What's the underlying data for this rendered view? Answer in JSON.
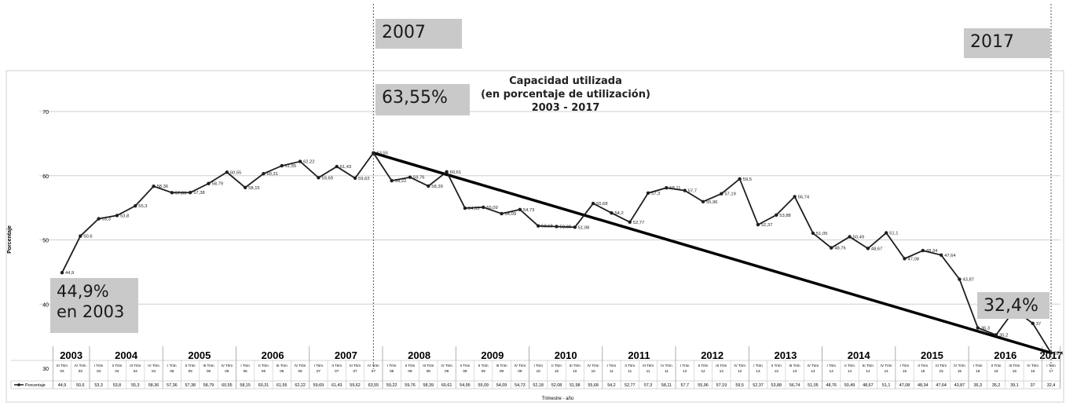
{
  "chart_data": {
    "type": "line",
    "title_lines": [
      "Capacidad utilizada",
      "(en porcentaje de utilización)",
      "2003 - 2017"
    ],
    "xlabel": "Trimestre - año",
    "ylabel": "Porcentaje",
    "ylim": [
      30,
      70
    ],
    "yticks": [
      30,
      40,
      50,
      60,
      70
    ],
    "grid": true,
    "legend": "bottom-left",
    "series": [
      {
        "name": "Porcentaje",
        "values": [
          44.9,
          50.6,
          53.3,
          53.8,
          55.3,
          58.36,
          57.36,
          57.38,
          58.79,
          60.55,
          58.15,
          60.31,
          61.55,
          62.22,
          59.69,
          61.43,
          59.62,
          63.55,
          59.22,
          59.76,
          58.39,
          60.61,
          54.95,
          55.09,
          54.09,
          54.73,
          52.18,
          52.08,
          51.98,
          55.68,
          54.2,
          52.77,
          57.3,
          58.11,
          57.7,
          55.96,
          57.19,
          59.5,
          52.37,
          53.88,
          56.74,
          51.05,
          48.76,
          50.49,
          48.67,
          51.1,
          47.08,
          48.34,
          47.64,
          43.87,
          36.3,
          35.2,
          39.1,
          37,
          32.4
        ]
      }
    ],
    "point_labels": [
      "44,9",
      "50,6",
      "53,3",
      "53,8",
      "55,3",
      "58,36",
      "57,36",
      "57,38",
      "58,79",
      "60,55",
      "58,15",
      "60,31",
      "61,55",
      "62,22",
      "59,69",
      "61,43",
      "59,62",
      "63,55",
      "59,22",
      "59,76",
      "58,39",
      "60,61",
      "54,95",
      "55,09",
      "54,09",
      "54,73",
      "52,18",
      "52,08",
      "51,98",
      "55,68",
      "54,2",
      "52,77",
      "57,3",
      "58,11",
      "57,7",
      "55,96",
      "57,19",
      "59,5",
      "52,37",
      "53,88",
      "56,74",
      "51,05",
      "48,76",
      "50,49",
      "48,67",
      "51,1",
      "47,08",
      "48,34",
      "47,64",
      "43,87",
      "36,3",
      "35,2",
      "39,1",
      "37",
      "32,4"
    ],
    "categories": [
      {
        "q": "III Trim",
        "y": "03"
      },
      {
        "q": "IV Trim",
        "y": "03"
      },
      {
        "q": "I Trim",
        "y": "04"
      },
      {
        "q": "II Trim",
        "y": "04"
      },
      {
        "q": "III Trim",
        "y": "04"
      },
      {
        "q": "IV Trim",
        "y": "04"
      },
      {
        "q": "I Trim",
        "y": "05"
      },
      {
        "q": "II Trim",
        "y": "05"
      },
      {
        "q": "III Trim",
        "y": "05"
      },
      {
        "q": "IV Trim",
        "y": "05"
      },
      {
        "q": "I Trim",
        "y": "06"
      },
      {
        "q": "II Trim",
        "y": "06"
      },
      {
        "q": "III Trim",
        "y": "06"
      },
      {
        "q": "IV Trim",
        "y": "06"
      },
      {
        "q": "I Trim",
        "y": "07"
      },
      {
        "q": "II Trim",
        "y": "07"
      },
      {
        "q": "III Trim",
        "y": "07"
      },
      {
        "q": "IV Trim",
        "y": "07"
      },
      {
        "q": "I Trim",
        "y": "08"
      },
      {
        "q": "II Trim",
        "y": "08"
      },
      {
        "q": "III Trim",
        "y": "08"
      },
      {
        "q": "IV Trim",
        "y": "08"
      },
      {
        "q": "II Trim",
        "y": "09"
      },
      {
        "q": "II Trim",
        "y": "09"
      },
      {
        "q": "III Trim",
        "y": "09"
      },
      {
        "q": "IV Trim",
        "y": "09"
      },
      {
        "q": "I Trim",
        "y": "10"
      },
      {
        "q": "II Trim",
        "y": "10"
      },
      {
        "q": "III Trim",
        "y": "10"
      },
      {
        "q": "IV Trim",
        "y": "10"
      },
      {
        "q": "I Trim",
        "y": "11"
      },
      {
        "q": "II Trim",
        "y": "11"
      },
      {
        "q": "III Trim",
        "y": "11"
      },
      {
        "q": "IV Trim",
        "y": "11"
      },
      {
        "q": "I Trim",
        "y": "12"
      },
      {
        "q": "II Trim",
        "y": "12"
      },
      {
        "q": "III Trim",
        "y": "12"
      },
      {
        "q": "IV Trim",
        "y": "12"
      },
      {
        "q": "I Trim",
        "y": "13"
      },
      {
        "q": "II Trim",
        "y": "13"
      },
      {
        "q": "III Trim",
        "y": "13"
      },
      {
        "q": "IV Trim",
        "y": "13"
      },
      {
        "q": "I Trim",
        "y": "14"
      },
      {
        "q": "II Trim",
        "y": "14"
      },
      {
        "q": "III Trim",
        "y": "14"
      },
      {
        "q": "IV Trim",
        "y": "14"
      },
      {
        "q": "I Trim",
        "y": "15"
      },
      {
        "q": "II Trim",
        "y": "15"
      },
      {
        "q": "III Trim",
        "y": "15"
      },
      {
        "q": "IV Trim",
        "y": "15"
      },
      {
        "q": "I Trim",
        "y": "16"
      },
      {
        "q": "II Trim",
        "y": "16"
      },
      {
        "q": "III Trim",
        "y": "16"
      },
      {
        "q": "IV Trim",
        "y": "16"
      },
      {
        "q": "I Trim",
        "y": "17"
      }
    ],
    "table_values": [
      "44,9",
      "50,6",
      "53,3",
      "53,8",
      "55,3",
      "58,36",
      "57,36",
      "57,38",
      "58,79",
      "60,55",
      "58,15",
      "60,31",
      "61,55",
      "62,22",
      "59,69",
      "61,43",
      "59,62",
      "63,55",
      "59,22",
      "59,76",
      "58,39",
      "60,61",
      "54,95",
      "55,09",
      "54,09",
      "54,73",
      "52,18",
      "52,08",
      "51,98",
      "55,68",
      "54,2",
      "52,77",
      "57,3",
      "58,11",
      "57,7",
      "55,96",
      "57,19",
      "59,5",
      "52,37",
      "53,88",
      "56,74",
      "51,05",
      "48,76",
      "50,49",
      "48,67",
      "51,1",
      "47,08",
      "48,34",
      "47,64",
      "43,87",
      "36,3",
      "35,2",
      "39,1",
      "37",
      "32,4"
    ],
    "year_groups": [
      {
        "label": "2003",
        "count": 2
      },
      {
        "label": "2004",
        "count": 4
      },
      {
        "label": "2005",
        "count": 4
      },
      {
        "label": "2006",
        "count": 4
      },
      {
        "label": "2007",
        "count": 4
      },
      {
        "label": "2008",
        "count": 4
      },
      {
        "label": "2009",
        "count": 4
      },
      {
        "label": "2010",
        "count": 4
      },
      {
        "label": "2011",
        "count": 4
      },
      {
        "label": "2012",
        "count": 4
      },
      {
        "label": "2013",
        "count": 4
      },
      {
        "label": "2014",
        "count": 4
      },
      {
        "label": "2015",
        "count": 4
      },
      {
        "label": "2016",
        "count": 4
      },
      {
        "label": "2017",
        "count": 1
      }
    ],
    "trend_line": {
      "from_index": 17,
      "to_index": 54
    },
    "markers": [
      {
        "at_index": 17
      },
      {
        "at_index": 54
      }
    ]
  },
  "annotations": {
    "year_start": "2007",
    "year_end": "2017",
    "value_start": "63,55%",
    "value_2003_line1": "44,9%",
    "value_2003_line2": "en 2003",
    "value_end": "32,4%"
  },
  "colors": {
    "line": "#1f1f1f",
    "grid": "#cccccc",
    "callout": "#c9c9c9",
    "trend": "#000000"
  }
}
